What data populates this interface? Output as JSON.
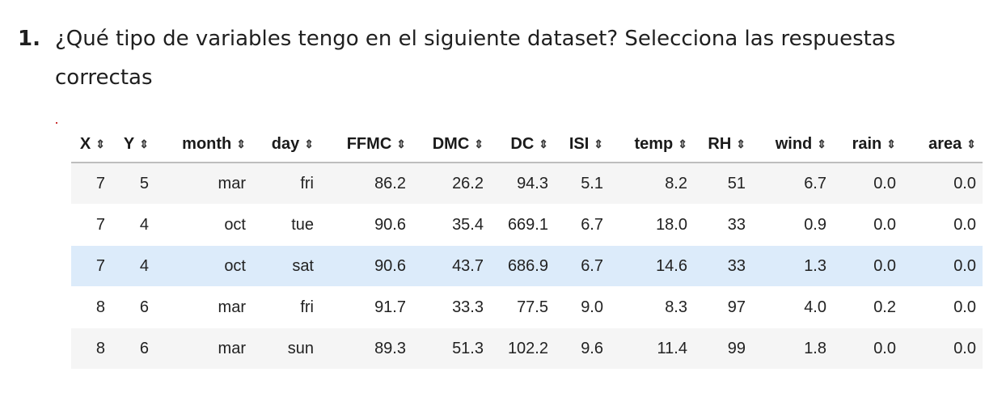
{
  "question": {
    "number": "1.",
    "text": "¿Qué tipo de variables tengo en el siguiente dataset? Selecciona las respuestas correctas"
  },
  "table": {
    "sort_icon": "sort-updown-icon",
    "columns": [
      "X",
      "Y",
      "month",
      "day",
      "FFMC",
      "DMC",
      "DC",
      "ISI",
      "temp",
      "RH",
      "wind",
      "rain",
      "area"
    ],
    "rows": [
      [
        "7",
        "5",
        "mar",
        "fri",
        "86.2",
        "26.2",
        "94.3",
        "5.1",
        "8.2",
        "51",
        "6.7",
        "0.0",
        "0.0"
      ],
      [
        "7",
        "4",
        "oct",
        "tue",
        "90.6",
        "35.4",
        "669.1",
        "6.7",
        "18.0",
        "33",
        "0.9",
        "0.0",
        "0.0"
      ],
      [
        "7",
        "4",
        "oct",
        "sat",
        "90.6",
        "43.7",
        "686.9",
        "6.7",
        "14.6",
        "33",
        "1.3",
        "0.0",
        "0.0"
      ],
      [
        "8",
        "6",
        "mar",
        "fri",
        "91.7",
        "33.3",
        "77.5",
        "9.0",
        "8.3",
        "97",
        "4.0",
        "0.2",
        "0.0"
      ],
      [
        "8",
        "6",
        "mar",
        "sun",
        "89.3",
        "51.3",
        "102.2",
        "9.6",
        "11.4",
        "99",
        "1.8",
        "0.0",
        "0.0"
      ]
    ],
    "highlighted_row": 2,
    "colors": {
      "row_stripe": "#f5f5f5",
      "row_highlight": "#dcebfa",
      "header_border": "#bdbdbd"
    }
  }
}
